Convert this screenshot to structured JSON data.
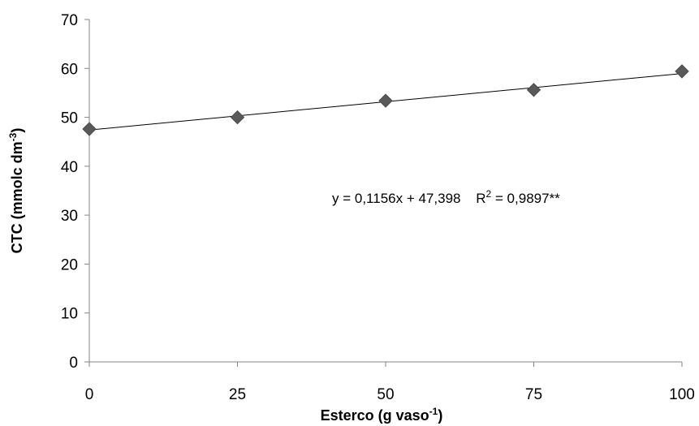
{
  "chart_data": {
    "type": "scatter",
    "title": "",
    "xlabel": "Esterco (g vaso-1)",
    "xlabel_parts": {
      "main": "Esterco (g vaso",
      "sup": "-1",
      "tail": ")"
    },
    "ylabel": "CTC (mmolc dm-3)",
    "ylabel_parts": {
      "main": "CTC (mmolc dm",
      "sup": "-3",
      "tail": ")"
    },
    "x": [
      0,
      25,
      50,
      75,
      100
    ],
    "series": [
      {
        "name": "",
        "y": [
          47.6,
          50.0,
          53.4,
          55.6,
          59.4
        ],
        "marker": "diamond",
        "color": "#595959"
      }
    ],
    "trendline": {
      "intercept": 47.398,
      "slope": 0.1156,
      "color": "#000000"
    },
    "equation_text": "y = 0,1156x + 47,398",
    "r2_parts": {
      "main": "R",
      "sup": "2",
      "tail": " = 0,9897**"
    },
    "xlim": [
      0,
      100
    ],
    "ylim": [
      0,
      70
    ],
    "xticks": [
      "0",
      "25",
      "50",
      "75",
      "100"
    ],
    "yticks": [
      "0",
      "10",
      "20",
      "30",
      "40",
      "50",
      "60",
      "70"
    ],
    "grid": false,
    "legend": "none"
  }
}
